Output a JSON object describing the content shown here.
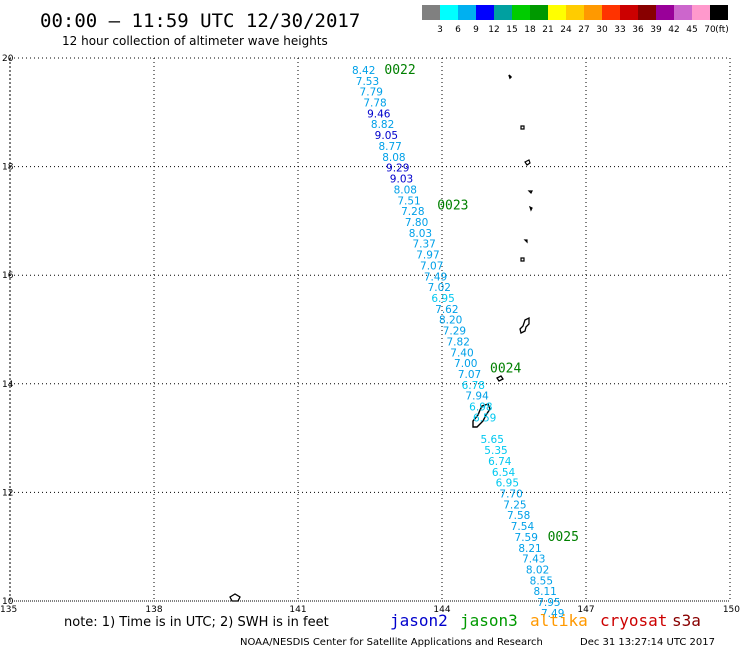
{
  "header": {
    "title": "00:00 — 11:59 UTC 12/30/2017",
    "subtitle": "12 hour collection of altimeter wave heights"
  },
  "colorbar": {
    "unit": "(ft)",
    "colors": [
      "#808080",
      "#00ffff",
      "#00b0f0",
      "#0000ff",
      "#00a0a0",
      "#00cc00",
      "#009900",
      "#ffff00",
      "#ffcc00",
      "#ff9900",
      "#ff3300",
      "#cc0000",
      "#880000",
      "#990099",
      "#cc66cc",
      "#ff99cc",
      "#000000"
    ],
    "labels": [
      "3",
      "6",
      "9",
      "12",
      "15",
      "18",
      "21",
      "24",
      "27",
      "30",
      "33",
      "36",
      "39",
      "42",
      "45",
      "70"
    ]
  },
  "axes": {
    "x_ticks": [
      "135",
      "138",
      "141",
      "144",
      "147",
      "150"
    ],
    "y_ticks": [
      "20",
      "18",
      "16",
      "14",
      "12",
      "10"
    ],
    "x_range": [
      135,
      150
    ],
    "y_range": [
      10,
      20
    ]
  },
  "passes": [
    {
      "label": "0022",
      "lat": 19.8,
      "lon": 142.8
    },
    {
      "label": "0023",
      "lat": 17.3,
      "lon": 143.9
    },
    {
      "label": "0024",
      "lat": 14.3,
      "lon": 145.0
    },
    {
      "label": "0025",
      "lat": 11.2,
      "lon": 146.2
    }
  ],
  "observations": [
    {
      "v": "8.42",
      "lat": 19.78,
      "c": "#00a0e8"
    },
    {
      "v": "7.53",
      "lat": 19.58,
      "c": "#00a0e8"
    },
    {
      "v": "7.79",
      "lat": 19.38,
      "c": "#00a0e8"
    },
    {
      "v": "7.78",
      "lat": 19.18,
      "c": "#00a0e8"
    },
    {
      "v": "9.46",
      "lat": 18.98,
      "c": "#0000cc"
    },
    {
      "v": "8.82",
      "lat": 18.78,
      "c": "#00a0e8"
    },
    {
      "v": "9.05",
      "lat": 18.58,
      "c": "#0000cc"
    },
    {
      "v": "8.77",
      "lat": 18.38,
      "c": "#00a0e8"
    },
    {
      "v": "8.08",
      "lat": 18.18,
      "c": "#00a0e8"
    },
    {
      "v": "9.29",
      "lat": 17.98,
      "c": "#0000cc"
    },
    {
      "v": "9.03",
      "lat": 17.78,
      "c": "#0000cc"
    },
    {
      "v": "8.08",
      "lat": 17.58,
      "c": "#00a0e8"
    },
    {
      "v": "7.51",
      "lat": 17.38,
      "c": "#00a0e8"
    },
    {
      "v": "7.28",
      "lat": 17.18,
      "c": "#00a0e8"
    },
    {
      "v": "7.80",
      "lat": 16.98,
      "c": "#00a0e8"
    },
    {
      "v": "8.03",
      "lat": 16.78,
      "c": "#00a0e8"
    },
    {
      "v": "7.37",
      "lat": 16.58,
      "c": "#00a0e8"
    },
    {
      "v": "7.97",
      "lat": 16.38,
      "c": "#00a0e8"
    },
    {
      "v": "7.07",
      "lat": 16.18,
      "c": "#00a0e8"
    },
    {
      "v": "7.49",
      "lat": 15.98,
      "c": "#00a0e8"
    },
    {
      "v": "7.02",
      "lat": 15.78,
      "c": "#00a0e8"
    },
    {
      "v": "6.95",
      "lat": 15.58,
      "c": "#00c8f0"
    },
    {
      "v": "7.62",
      "lat": 15.38,
      "c": "#00a0e8"
    },
    {
      "v": "8.20",
      "lat": 15.18,
      "c": "#00a0e8"
    },
    {
      "v": "7.29",
      "lat": 14.98,
      "c": "#00a0e8"
    },
    {
      "v": "7.82",
      "lat": 14.78,
      "c": "#00a0e8"
    },
    {
      "v": "7.40",
      "lat": 14.58,
      "c": "#00a0e8"
    },
    {
      "v": "7.00",
      "lat": 14.38,
      "c": "#00a0e8"
    },
    {
      "v": "7.07",
      "lat": 14.18,
      "c": "#00a0e8"
    },
    {
      "v": "6.78",
      "lat": 13.98,
      "c": "#00c8f0"
    },
    {
      "v": "7.94",
      "lat": 13.78,
      "c": "#00a0e8"
    },
    {
      "v": "6.98",
      "lat": 13.58,
      "c": "#00c8f0"
    },
    {
      "v": "6.59",
      "lat": 13.38,
      "c": "#00c8f0"
    },
    {
      "v": "5.65",
      "lat": 12.98,
      "c": "#00c8f0"
    },
    {
      "v": "5.35",
      "lat": 12.78,
      "c": "#00c8f0"
    },
    {
      "v": "6.74",
      "lat": 12.58,
      "c": "#00c8f0"
    },
    {
      "v": "6.54",
      "lat": 12.38,
      "c": "#00c8f0"
    },
    {
      "v": "6.95",
      "lat": 12.18,
      "c": "#00c8f0"
    },
    {
      "v": "7.70",
      "lat": 11.98,
      "c": "#00a0e8"
    },
    {
      "v": "7.25",
      "lat": 11.78,
      "c": "#00a0e8"
    },
    {
      "v": "7.58",
      "lat": 11.58,
      "c": "#00a0e8"
    },
    {
      "v": "7.54",
      "lat": 11.38,
      "c": "#00a0e8"
    },
    {
      "v": "7.59",
      "lat": 11.18,
      "c": "#00a0e8"
    },
    {
      "v": "8.21",
      "lat": 10.98,
      "c": "#00a0e8"
    },
    {
      "v": "7.43",
      "lat": 10.78,
      "c": "#00a0e8"
    },
    {
      "v": "8.02",
      "lat": 10.58,
      "c": "#00a0e8"
    },
    {
      "v": "8.55",
      "lat": 10.38,
      "c": "#00a0e8"
    },
    {
      "v": "8.11",
      "lat": 10.18,
      "c": "#00a0e8"
    },
    {
      "v": "7.95",
      "lat": 9.98,
      "c": "#00a0e8"
    },
    {
      "v": "7.49",
      "lat": 9.78,
      "c": "#00a0e8"
    }
  ],
  "footer": {
    "note": "note: 1) Time is in UTC; 2) SWH is in feet",
    "credit": "NOAA/NESDIS Center for Satellite Applications and Research",
    "timestamp": "Dec 31 13:27:14 UTC 2017"
  },
  "legend": [
    {
      "name": "jason2",
      "color": "#0000cc"
    },
    {
      "name": "jason3",
      "color": "#009900"
    },
    {
      "name": "altika",
      "color": "#ff9900"
    },
    {
      "name": "cryosat",
      "color": "#cc0000"
    },
    {
      "name": "s3a",
      "color": "#880000"
    }
  ]
}
